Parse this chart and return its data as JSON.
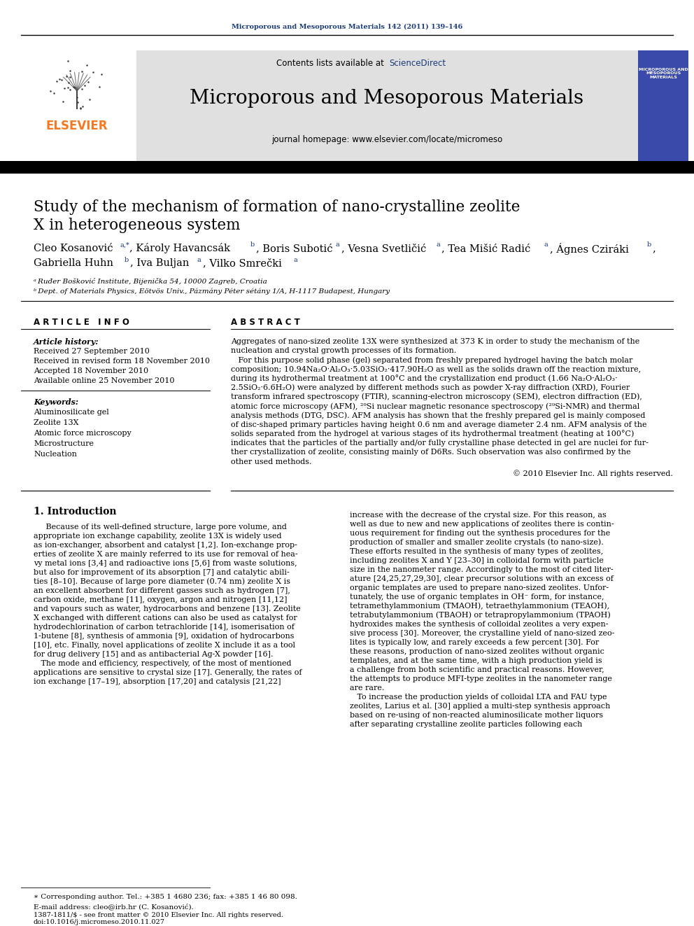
{
  "journal_ref": "Microporous and Mesoporous Materials 142 (2011) 139–146",
  "journal_name": "Microporous and Mesoporous Materials",
  "journal_homepage": "journal homepage: www.elsevier.com/locate/micromeso",
  "contents_before": "Contents lists available at ",
  "contents_link": "ScienceDirect",
  "paper_title_line1": "Study of the mechanism of formation of nano-crystalline zeolite",
  "paper_title_line2": "X in heterogeneous system",
  "affil_a": "ᵃ Ruđer Bošković Institute, Bijenička 54, 10000 Zagreb, Croatia",
  "affil_b": "ᵇ Dept. of Materials Physics, Eötvös Univ., Pázmány Péter sétány 1/A, H-1117 Budapest, Hungary",
  "article_info_header": "A R T I C L E   I N F O",
  "abstract_header": "A B S T R A C T",
  "article_history_label": "Article history:",
  "received": "Received 27 September 2010",
  "received_revised": "Received in revised form 18 November 2010",
  "accepted": "Accepted 18 November 2010",
  "available_online": "Available online 25 November 2010",
  "keywords_label": "Keywords:",
  "keywords": [
    "Aluminosilicate gel",
    "Zeolite 13X",
    "Atomic force microscopy",
    "Microstructure",
    "Nucleation"
  ],
  "abstract_lines": [
    "Aggregates of nano-sized zeolite 13X were synthesized at 373 K in order to study the mechanism of the",
    "nucleation and crystal growth processes of its formation.",
    "   For this purpose solid phase (gel) separated from freshly prepared hydrogel having the batch molar",
    "composition; 10.94Na₂O·Al₂O₃·5.03SiO₂·417.90H₂O as well as the solids drawn off the reaction mixture,",
    "during its hydrothermal treatment at 100°C and the crystallization end product (1.66 Na₂O·Al₂O₃·",
    "2.5SiO₂·6.6H₂O) were analyzed by different methods such as powder X-ray diffraction (XRD), Fourier",
    "transform infrared spectroscopy (FTIR), scanning-electron microscopy (SEM), electron diffraction (ED),",
    "atomic force microscopy (AFM), ²⁹Si nuclear magnetic resonance spectroscopy (²⁹Si-NMR) and thermal",
    "analysis methods (DTG, DSC). AFM analysis has shown that the freshly prepared gel is mainly composed",
    "of disc-shaped primary particles having height 0.6 nm and average diameter 2.4 nm. AFM analysis of the",
    "solids separated from the hydrogel at various stages of its hydrothermal treatment (heating at 100°C)",
    "indicates that the particles of the partially and/or fully crystalline phase detected in gel are nuclei for fur-",
    "ther crystallization of zeolite, consisting mainly of D6Rs. Such observation was also confirmed by the",
    "other used methods."
  ],
  "copyright": "© 2010 Elsevier Inc. All rights reserved.",
  "intro_header": "1. Introduction",
  "intro_col1_lines": [
    "     Because of its well-defined structure, large pore volume, and",
    "appropriate ion exchange capability, zeolite 13X is widely used",
    "as ion-exchanger, absorbent and catalyst [1,2]. Ion-exchange prop-",
    "erties of zeolite X are mainly referred to its use for removal of hea-",
    "vy metal ions [3,4] and radioactive ions [5,6] from waste solutions,",
    "but also for improvement of its absorption [7] and catalytic abili-",
    "ties [8–10]. Because of large pore diameter (0.74 nm) zeolite X is",
    "an excellent absorbent for different gasses such as hydrogen [7],",
    "carbon oxide, methane [11], oxygen, argon and nitrogen [11,12]",
    "and vapours such as water, hydrocarbons and benzene [13]. Zeolite",
    "X exchanged with different cations can also be used as catalyst for",
    "hydrodechlorination of carbon tetrachloride [14], isomerisation of",
    "1-butene [8], synthesis of ammonia [9], oxidation of hydrocarbons",
    "[10], etc. Finally, novel applications of zeolite X include it as a tool",
    "for drug delivery [15] and as antibacterial Ag-X powder [16].",
    "   The mode and efficiency, respectively, of the most of mentioned",
    "applications are sensitive to crystal size [17]. Generally, the rates of",
    "ion exchange [17–19], absorption [17,20] and catalysis [21,22]"
  ],
  "intro_col2_lines": [
    "increase with the decrease of the crystal size. For this reason, as",
    "well as due to new and new applications of zeolites there is contin-",
    "uous requirement for finding out the synthesis procedures for the",
    "production of smaller and smaller zeolite crystals (to nano-size).",
    "These efforts resulted in the synthesis of many types of zeolites,",
    "including zeolites X and Y [23–30] in colloidal form with particle",
    "size in the nanometer range. Accordingly to the most of cited liter-",
    "ature [24,25,27,29,30], clear precursor solutions with an excess of",
    "organic templates are used to prepare nano-sized zeolites. Unfor-",
    "tunately, the use of organic templates in OH⁻ form, for instance,",
    "tetramethylammonium (TMAOH), tetraethylammonium (TEAOH),",
    "tetrabutylammonium (TBAOH) or tetrapropylammonium (TPAOH)",
    "hydroxides makes the synthesis of colloidal zeolites a very expen-",
    "sive process [30]. Moreover, the crystalline yield of nano-sized zeo-",
    "lites is typically low, and rarely exceeds a few percent [30]. For",
    "these reasons, production of nano-sized zeolites without organic",
    "templates, and at the same time, with a high production yield is",
    "a challenge from both scientific and practical reasons. However,",
    "the attempts to produce MFI-type zeolites in the nanometer range",
    "are rare.",
    "   To increase the production yields of colloidal LTA and FAU type",
    "zeolites, Larius et al. [30] applied a multi-step synthesis approach",
    "based on re-using of non-reacted aluminosilicate mother liquors",
    "after separating crystalline zeolite particles following each"
  ],
  "footnote_star": "∗ Corresponding author. Tel.: +385 1 4680 236; fax: +385 1 46 80 098.",
  "footnote_email": "E-mail address: cleo@irb.hr (C. Kosanović).",
  "footer_issn": "1387-1811/$ - see front matter © 2010 Elsevier Inc. All rights reserved.",
  "footer_doi": "doi:10.1016/j.micromeso.2010.11.027",
  "bg_color": "#ffffff",
  "header_bg": "#e0e0e0",
  "elsevier_orange": "#f47920",
  "link_color": "#1a3a7a",
  "dark_bar_color": "#000000",
  "text_color": "#000000",
  "ref_link_color": "#1a3a7a"
}
